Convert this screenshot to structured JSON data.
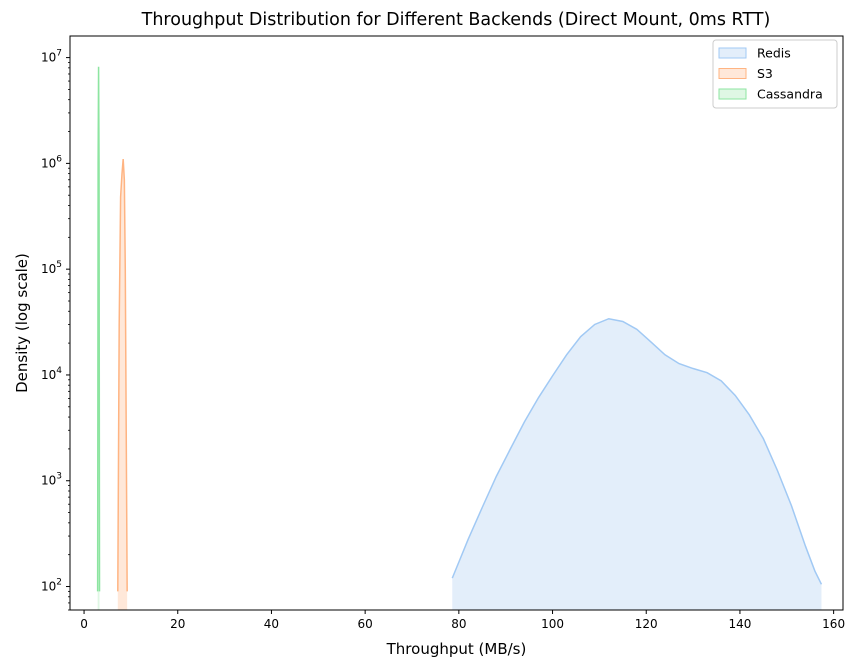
{
  "chart_data": {
    "type": "area",
    "title": "Throughput Distribution for Different Backends (Direct Mount, 0ms RTT)",
    "xlabel": "Throughput (MB/s)",
    "ylabel": "Density (log scale)",
    "xlim": [
      -3,
      162
    ],
    "ylim": [
      60,
      16000000
    ],
    "yscale": "log",
    "xticks": [
      0,
      20,
      40,
      60,
      80,
      100,
      120,
      140,
      160
    ],
    "xtick_labels": [
      "0",
      "20",
      "40",
      "60",
      "80",
      "100",
      "120",
      "140",
      "160"
    ],
    "yticks": [
      100,
      1000,
      10000,
      100000,
      1000000,
      10000000
    ],
    "ytick_labels": [
      {
        "base": "10",
        "exp": "2"
      },
      {
        "base": "10",
        "exp": "3"
      },
      {
        "base": "10",
        "exp": "4"
      },
      {
        "base": "10",
        "exp": "5"
      },
      {
        "base": "10",
        "exp": "6"
      },
      {
        "base": "10",
        "exp": "7"
      }
    ],
    "grid": false,
    "legend_position": "top-right",
    "series": [
      {
        "name": "Redis",
        "line_color": "#a1c9f4",
        "fill_color": "#e3eefa",
        "x": [
          78.6,
          80,
          82,
          85,
          88,
          91,
          94,
          97,
          100,
          103,
          106,
          109,
          112,
          115,
          118,
          121,
          124,
          127,
          130,
          133,
          136,
          139,
          142,
          145,
          148,
          151,
          154,
          156,
          157.4
        ],
        "y": [
          120,
          170,
          280,
          560,
          1100,
          2000,
          3600,
          6100,
          9800,
          15500,
          23000,
          30000,
          34000,
          32000,
          27000,
          20500,
          15500,
          12800,
          11500,
          10500,
          8800,
          6400,
          4200,
          2500,
          1250,
          580,
          240,
          140,
          105
        ]
      },
      {
        "name": "S3",
        "line_color": "#ffb482",
        "fill_color": "#ffe8d9",
        "x": [
          7.2,
          7.5,
          7.8,
          8.1,
          8.35,
          8.6,
          8.8,
          9.0,
          9.2
        ],
        "y": [
          90,
          30000,
          480000,
          800000,
          1100000,
          700000,
          100000,
          3000,
          90
        ]
      },
      {
        "name": "Cassandra",
        "line_color": "#8de5a1",
        "fill_color": "#dff7e4",
        "x": [
          2.9,
          3.0,
          3.1,
          3.2,
          3.3
        ],
        "y": [
          90,
          1000000,
          8200000,
          1000000,
          90
        ]
      }
    ]
  }
}
